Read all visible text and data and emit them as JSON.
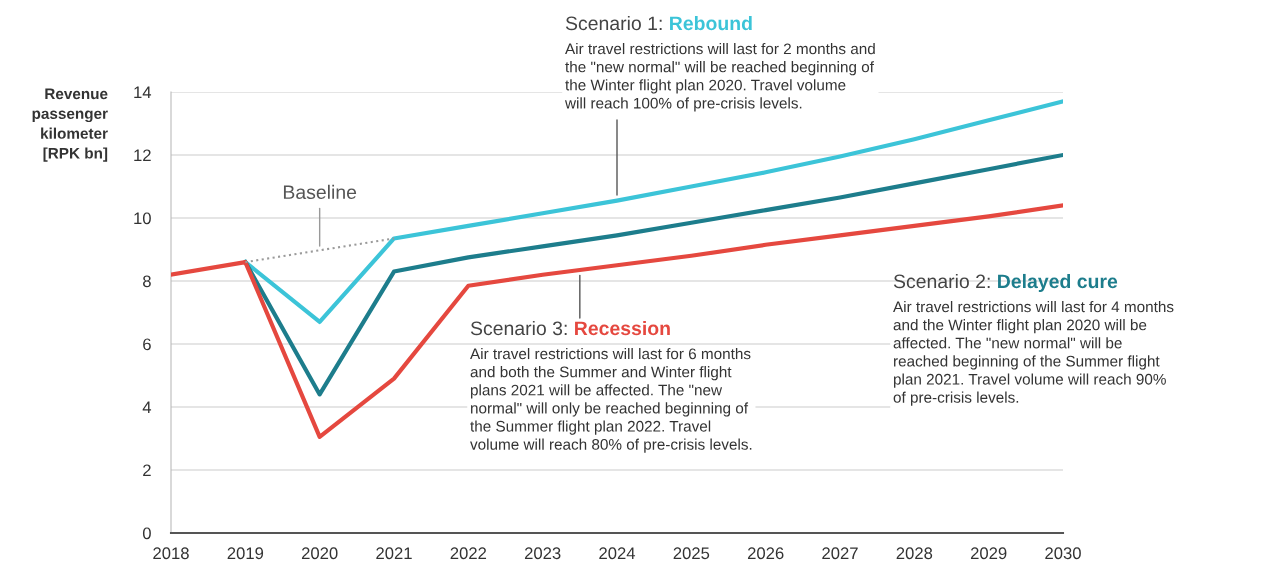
{
  "chart_data": {
    "type": "line",
    "ylabel": "Revenue\npassenger\nkilometer\n[RPK bn]",
    "x": [
      2018,
      2019,
      2020,
      2021,
      2022,
      2023,
      2024,
      2025,
      2026,
      2027,
      2028,
      2029,
      2030
    ],
    "series": [
      {
        "name": "Rebound",
        "color": "#3cc4d8",
        "values": [
          null,
          8.6,
          6.7,
          9.35,
          9.75,
          10.15,
          10.55,
          11.0,
          11.45,
          11.95,
          12.5,
          13.1,
          13.7
        ]
      },
      {
        "name": "Delayed cure",
        "color": "#1d7d8c",
        "values": [
          null,
          8.6,
          4.4,
          8.3,
          8.75,
          9.1,
          9.45,
          9.85,
          10.25,
          10.65,
          11.1,
          11.55,
          12.0
        ]
      },
      {
        "name": "Recession",
        "color": "#e5483f",
        "values": [
          8.2,
          8.6,
          3.05,
          4.9,
          7.85,
          8.2,
          8.5,
          8.8,
          9.15,
          9.45,
          9.75,
          10.05,
          10.4
        ]
      },
      {
        "color": "#9a9a9a",
        "x": [
          2019,
          2021
        ],
        "values": [
          8.6,
          9.35
        ],
        "line_style": "dotted"
      }
    ],
    "xlim": [
      2018,
      2030
    ],
    "ylim": [
      0,
      14
    ],
    "xticks": [
      2018,
      2019,
      2020,
      2021,
      2022,
      2023,
      2024,
      2025,
      2026,
      2027,
      2028,
      2029,
      2030
    ],
    "yticks": [
      0,
      2,
      4,
      6,
      8,
      10,
      12,
      14
    ],
    "grid": "y",
    "legend": false,
    "marker": "none",
    "line_style": "solid",
    "annotations": [
      "Scenario 1:",
      {
        "text": "Air travel restrictions will last for 2 months and\nthe \"new normal\" will be reached beginning of\nthe Winter flight plan 2020. Travel volume\nwill reach 100% of pre-crisis levels.",
        "x": 2024,
        "y": 10.55
      },
      "Scenario 2:",
      "Air travel restrictions will last for 4 months\nand the Winter flight plan 2020 will be\naffected. The \"new normal\" will be\nreached beginning of the Summer flight\nplan 2021. Travel volume will reach 90%\nof pre-crisis levels.",
      {
        "text": "Scenario 3:",
        "x": 2023.5,
        "y": 8.35
      },
      "Air travel restrictions will last for 6 months\nand both the Summer and Winter flight\nplans 2021 will be affected. The \"new\nnormal\" will only be reached beginning of\nthe Summer flight plan 2022. Travel\nvolume will reach 80% of pre-crisis levels.",
      {
        "text": "Baseline",
        "x": 2020,
        "y": 8.98
      }
    ]
  }
}
